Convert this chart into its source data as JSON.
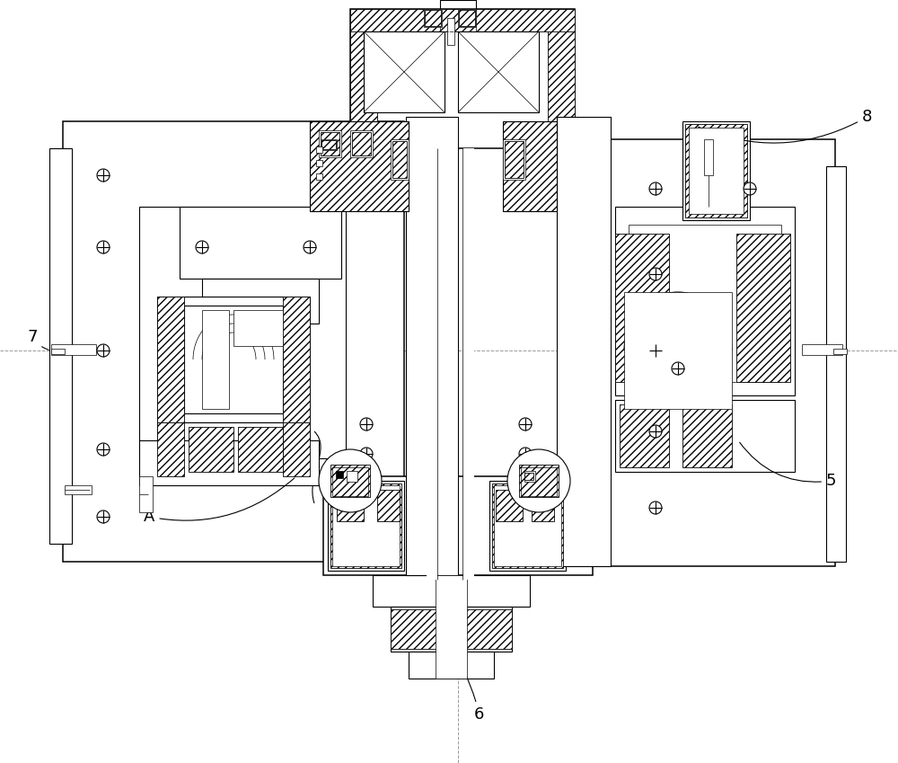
{
  "bg_color": "#ffffff",
  "line_color": "#000000",
  "fig_width": 10.0,
  "fig_height": 8.49,
  "dpi": 100,
  "label_fontsize": 13
}
